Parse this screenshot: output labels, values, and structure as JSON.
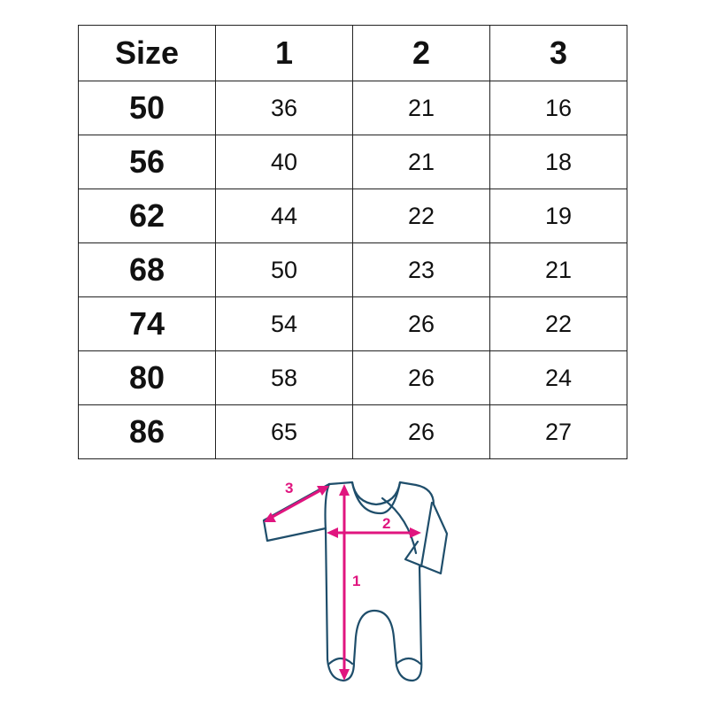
{
  "table": {
    "headers": [
      "Size",
      "1",
      "2",
      "3"
    ],
    "rows": [
      [
        "50",
        "36",
        "21",
        "16"
      ],
      [
        "56",
        "40",
        "21",
        "18"
      ],
      [
        "62",
        "44",
        "22",
        "19"
      ],
      [
        "68",
        "50",
        "23",
        "21"
      ],
      [
        "74",
        "54",
        "26",
        "22"
      ],
      [
        "80",
        "58",
        "26",
        "24"
      ],
      [
        "86",
        "65",
        "26",
        "27"
      ]
    ]
  },
  "diagram": {
    "labels": [
      "1",
      "2",
      "3"
    ],
    "outline_color": "#1f4e6b",
    "arrow_color": "#e0157f"
  }
}
